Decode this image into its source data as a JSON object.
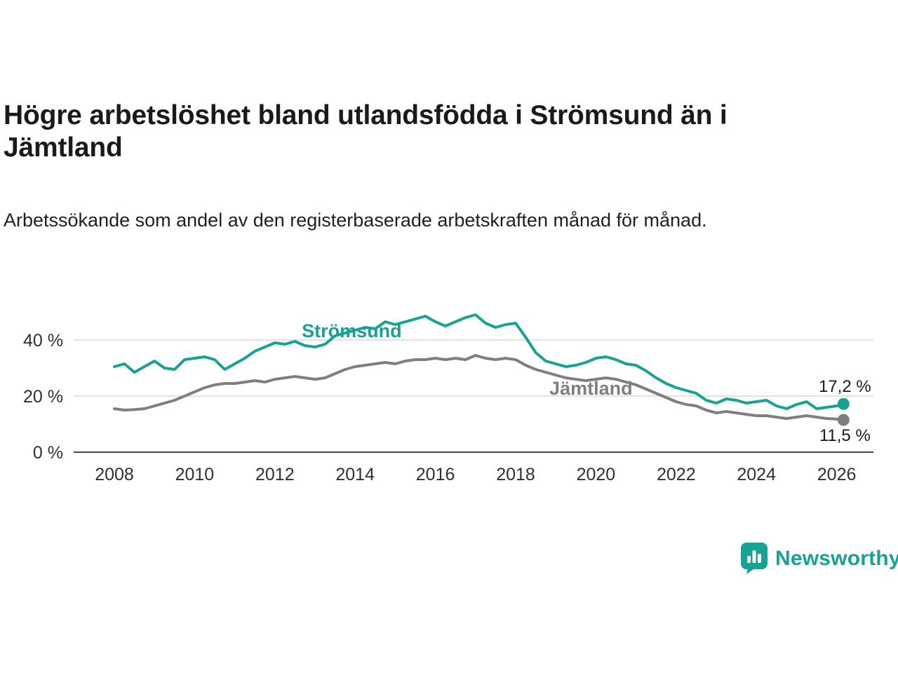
{
  "header": {
    "title": "Högre arbetslöshet bland utlandsfödda i Strömsund än i Jämtland",
    "subtitle": "Arbetssökande som andel av den registerbaserade arbetskraften månad för månad."
  },
  "footer": {
    "brand": "Newsworthy",
    "brand_color": "#17A296"
  },
  "chart_data": {
    "type": "line",
    "title": "Högre arbetslöshet bland utlandsfödda i Strömsund än i Jämtland",
    "subtitle": "Arbetssökande som andel av den registerbaserade arbetskraften månad för månad.",
    "unit": "%",
    "grid": "horizontal",
    "legend": "inline-labels",
    "x_range": [
      2007.0,
      2026.9
    ],
    "y_range": [
      0,
      52
    ],
    "y_ticks": [
      {
        "value": 0,
        "label": "0 %"
      },
      {
        "value": 20,
        "label": "20 %"
      },
      {
        "value": 40,
        "label": "40 %"
      }
    ],
    "x_ticks": [
      2008,
      2010,
      2012,
      2014,
      2016,
      2018,
      2020,
      2022,
      2024,
      2026
    ],
    "x": [
      2008,
      2008.25,
      2008.5,
      2008.75,
      2009,
      2009.25,
      2009.5,
      2009.75,
      2010,
      2010.25,
      2010.5,
      2010.75,
      2011,
      2011.25,
      2011.5,
      2011.75,
      2012,
      2012.25,
      2012.5,
      2012.75,
      2013,
      2013.25,
      2013.5,
      2013.75,
      2014,
      2014.25,
      2014.5,
      2014.75,
      2015,
      2015.25,
      2015.5,
      2015.75,
      2016,
      2016.25,
      2016.5,
      2016.75,
      2017,
      2017.25,
      2017.5,
      2017.75,
      2018,
      2018.25,
      2018.5,
      2018.75,
      2019,
      2019.25,
      2019.5,
      2019.75,
      2020,
      2020.25,
      2020.5,
      2020.75,
      2021,
      2021.25,
      2021.5,
      2021.75,
      2022,
      2022.25,
      2022.5,
      2022.75,
      2023,
      2023.25,
      2023.5,
      2023.75,
      2024,
      2024.25,
      2024.5,
      2024.75,
      2025,
      2025.25,
      2025.5,
      2025.75,
      2026,
      2026.17
    ],
    "series": [
      {
        "name": "Strömsund",
        "color": "#17A296",
        "label_color": "#17A296",
        "end_label": "17,2 %",
        "end_value": 17.2,
        "label_pos": {
          "x": 2012.67,
          "y": 41
        },
        "end_label_offset": -17,
        "values": [
          30.5,
          31.5,
          28.5,
          30.5,
          32.5,
          30,
          29.5,
          33,
          33.5,
          34,
          33,
          29.5,
          31.5,
          33.5,
          36,
          37.5,
          39,
          38.5,
          39.5,
          38,
          37.5,
          38.5,
          41.5,
          42.5,
          43.5,
          44.5,
          44,
          46.5,
          45.5,
          46.5,
          47.5,
          48.5,
          46.5,
          45,
          46.5,
          48,
          49,
          46,
          44.5,
          45.5,
          46,
          41,
          35.5,
          32.5,
          31.5,
          30.5,
          31,
          32,
          33.5,
          34,
          33,
          31.5,
          31,
          29,
          26.5,
          24.5,
          23,
          22,
          21,
          18.5,
          17.5,
          19,
          18.5,
          17.5,
          18,
          18.5,
          16.5,
          15.5,
          17,
          18,
          15.5,
          16,
          16.5,
          17.2
        ]
      },
      {
        "name": "Jämtland",
        "color": "#7F7F7F",
        "label_color": "#7F7F7F",
        "end_label": "11,5 %",
        "end_value": 11.5,
        "label_pos": {
          "x": 2018.84,
          "y": 20.5
        },
        "end_label_offset": 30,
        "values": [
          15.5,
          15,
          15.2,
          15.5,
          16.5,
          17.5,
          18.5,
          20,
          21.5,
          23,
          24,
          24.5,
          24.5,
          25,
          25.5,
          25,
          26,
          26.5,
          27,
          26.5,
          26,
          26.5,
          28,
          29.5,
          30.5,
          31,
          31.5,
          32,
          31.5,
          32.5,
          33,
          33,
          33.5,
          33,
          33.5,
          33,
          34.5,
          33.5,
          33,
          33.5,
          33,
          31,
          29.5,
          28.5,
          27.5,
          26.5,
          26,
          25.5,
          26,
          26.5,
          26,
          25,
          24,
          22.5,
          21,
          19.5,
          18,
          17,
          16.5,
          15,
          14,
          14.5,
          14,
          13.5,
          13,
          13,
          12.5,
          12,
          12.5,
          13,
          12.5,
          12,
          11.8,
          11.5
        ]
      }
    ]
  }
}
